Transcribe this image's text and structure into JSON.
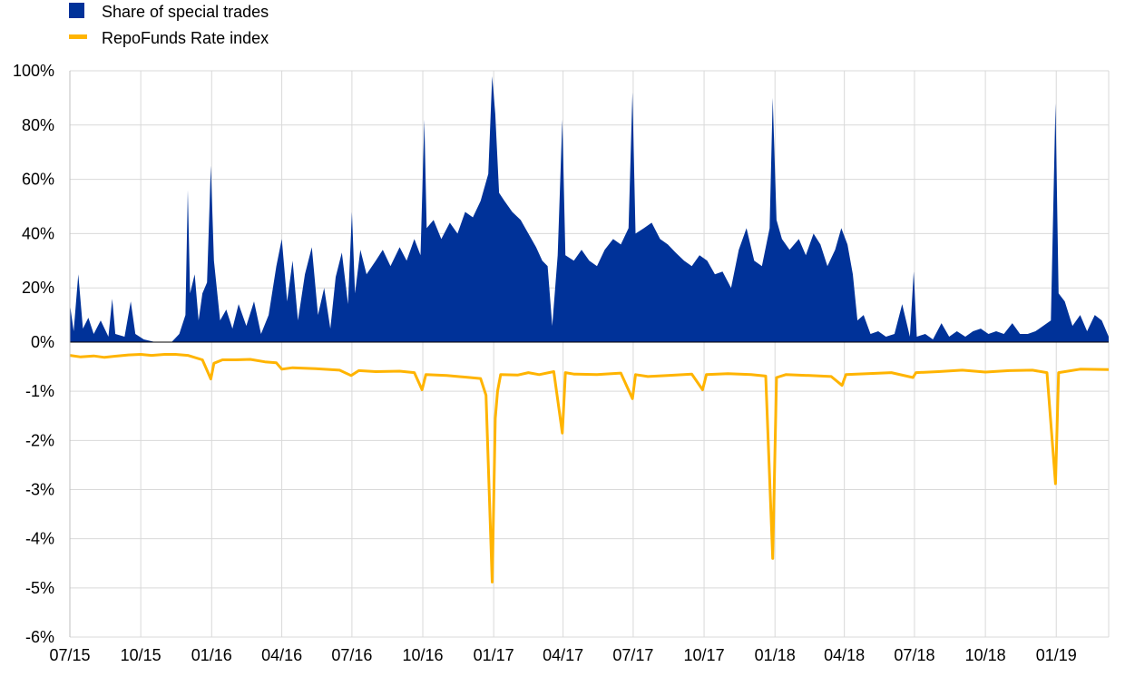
{
  "colors": {
    "special_share": "#003299",
    "repo_index": "#FFB400",
    "grid": "#d9d9d9",
    "axis": "#000000"
  },
  "legend": [
    {
      "label": "Share of special trades",
      "color": "#003299",
      "marker": "square"
    },
    {
      "label": "RepoFunds Rate index",
      "color": "#FFB400",
      "marker": "line"
    }
  ],
  "chart_data": {
    "type": "area",
    "title": "",
    "xlabel": "",
    "ylabel": "",
    "x_range": [
      "2015-07-01",
      "2019-03-10"
    ],
    "x_ticks": [
      {
        "date": "2015-07-01",
        "label": "07/15"
      },
      {
        "date": "2015-10-01",
        "label": "10/15"
      },
      {
        "date": "2016-01-01",
        "label": "01/16"
      },
      {
        "date": "2016-04-01",
        "label": "04/16"
      },
      {
        "date": "2016-07-01",
        "label": "07/16"
      },
      {
        "date": "2016-10-01",
        "label": "10/16"
      },
      {
        "date": "2017-01-01",
        "label": "01/17"
      },
      {
        "date": "2017-04-01",
        "label": "04/17"
      },
      {
        "date": "2017-07-01",
        "label": "07/17"
      },
      {
        "date": "2017-10-01",
        "label": "10/17"
      },
      {
        "date": "2018-01-01",
        "label": "01/18"
      },
      {
        "date": "2018-04-01",
        "label": "04/18"
      },
      {
        "date": "2018-07-01",
        "label": "07/18"
      },
      {
        "date": "2018-10-01",
        "label": "10/18"
      },
      {
        "date": "2019-01-01",
        "label": "01/19"
      }
    ],
    "y_positive": {
      "range": [
        0,
        100
      ],
      "ticks": [
        0,
        20,
        40,
        60,
        80,
        100
      ],
      "labels": [
        "0%",
        "20%",
        "40%",
        "60%",
        "80%",
        "100%"
      ]
    },
    "y_negative": {
      "range": [
        -6,
        0
      ],
      "ticks": [
        -1,
        -2,
        -3,
        -4,
        -5,
        -6
      ],
      "labels": [
        "-1%",
        "-2%",
        "-3%",
        "-4%",
        "-5%",
        "-6%"
      ]
    },
    "grid": true,
    "legend_position": "top-left",
    "series": [
      {
        "name": "Share of special trades",
        "type": "area",
        "unit": "%",
        "points": [
          [
            "2015-07-01",
            14
          ],
          [
            "2015-07-06",
            4
          ],
          [
            "2015-07-12",
            25
          ],
          [
            "2015-07-18",
            5
          ],
          [
            "2015-07-25",
            9
          ],
          [
            "2015-08-01",
            3
          ],
          [
            "2015-08-10",
            8
          ],
          [
            "2015-08-20",
            2
          ],
          [
            "2015-08-25",
            16
          ],
          [
            "2015-08-29",
            3
          ],
          [
            "2015-09-10",
            2
          ],
          [
            "2015-09-18",
            15
          ],
          [
            "2015-09-24",
            3
          ],
          [
            "2015-10-05",
            1
          ],
          [
            "2015-10-20",
            0
          ],
          [
            "2015-11-10",
            0
          ],
          [
            "2015-11-20",
            3
          ],
          [
            "2015-11-28",
            10
          ],
          [
            "2015-12-01",
            56
          ],
          [
            "2015-12-04",
            18
          ],
          [
            "2015-12-10",
            25
          ],
          [
            "2015-12-15",
            8
          ],
          [
            "2015-12-20",
            18
          ],
          [
            "2015-12-26",
            22
          ],
          [
            "2015-12-31",
            65
          ],
          [
            "2016-01-04",
            30
          ],
          [
            "2016-01-12",
            8
          ],
          [
            "2016-01-20",
            12
          ],
          [
            "2016-01-28",
            5
          ],
          [
            "2016-02-05",
            14
          ],
          [
            "2016-02-15",
            6
          ],
          [
            "2016-02-25",
            15
          ],
          [
            "2016-03-05",
            3
          ],
          [
            "2016-03-15",
            10
          ],
          [
            "2016-03-25",
            28
          ],
          [
            "2016-04-01",
            38
          ],
          [
            "2016-04-08",
            15
          ],
          [
            "2016-04-15",
            30
          ],
          [
            "2016-04-22",
            8
          ],
          [
            "2016-05-01",
            25
          ],
          [
            "2016-05-10",
            35
          ],
          [
            "2016-05-18",
            10
          ],
          [
            "2016-05-26",
            20
          ],
          [
            "2016-06-03",
            5
          ],
          [
            "2016-06-10",
            24
          ],
          [
            "2016-06-18",
            33
          ],
          [
            "2016-06-26",
            14
          ],
          [
            "2016-07-01",
            48
          ],
          [
            "2016-07-05",
            18
          ],
          [
            "2016-07-12",
            34
          ],
          [
            "2016-07-20",
            25
          ],
          [
            "2016-08-01",
            30
          ],
          [
            "2016-08-10",
            34
          ],
          [
            "2016-08-20",
            28
          ],
          [
            "2016-09-01",
            35
          ],
          [
            "2016-09-10",
            30
          ],
          [
            "2016-09-20",
            38
          ],
          [
            "2016-09-28",
            32
          ],
          [
            "2016-10-03",
            82
          ],
          [
            "2016-10-06",
            42
          ],
          [
            "2016-10-15",
            45
          ],
          [
            "2016-10-25",
            38
          ],
          [
            "2016-11-05",
            44
          ],
          [
            "2016-11-15",
            40
          ],
          [
            "2016-11-25",
            48
          ],
          [
            "2016-12-05",
            46
          ],
          [
            "2016-12-15",
            52
          ],
          [
            "2016-12-25",
            62
          ],
          [
            "2016-12-30",
            98
          ],
          [
            "2017-01-03",
            84
          ],
          [
            "2017-01-08",
            55
          ],
          [
            "2017-01-15",
            52
          ],
          [
            "2017-01-25",
            48
          ],
          [
            "2017-02-05",
            45
          ],
          [
            "2017-02-15",
            40
          ],
          [
            "2017-02-25",
            35
          ],
          [
            "2017-03-05",
            30
          ],
          [
            "2017-03-12",
            28
          ],
          [
            "2017-03-18",
            6
          ],
          [
            "2017-03-25",
            32
          ],
          [
            "2017-03-31",
            82
          ],
          [
            "2017-04-04",
            32
          ],
          [
            "2017-04-15",
            30
          ],
          [
            "2017-04-25",
            34
          ],
          [
            "2017-05-05",
            30
          ],
          [
            "2017-05-15",
            28
          ],
          [
            "2017-05-25",
            34
          ],
          [
            "2017-06-05",
            38
          ],
          [
            "2017-06-15",
            36
          ],
          [
            "2017-06-25",
            42
          ],
          [
            "2017-06-30",
            92
          ],
          [
            "2017-07-04",
            40
          ],
          [
            "2017-07-15",
            42
          ],
          [
            "2017-07-25",
            44
          ],
          [
            "2017-08-05",
            38
          ],
          [
            "2017-08-15",
            36
          ],
          [
            "2017-08-25",
            33
          ],
          [
            "2017-09-05",
            30
          ],
          [
            "2017-09-15",
            28
          ],
          [
            "2017-09-25",
            32
          ],
          [
            "2017-10-05",
            30
          ],
          [
            "2017-10-15",
            25
          ],
          [
            "2017-10-25",
            26
          ],
          [
            "2017-11-05",
            20
          ],
          [
            "2017-11-15",
            34
          ],
          [
            "2017-11-25",
            42
          ],
          [
            "2017-12-05",
            30
          ],
          [
            "2017-12-15",
            28
          ],
          [
            "2017-12-25",
            42
          ],
          [
            "2017-12-29",
            90
          ],
          [
            "2018-01-03",
            45
          ],
          [
            "2018-01-10",
            38
          ],
          [
            "2018-01-20",
            34
          ],
          [
            "2018-02-01",
            38
          ],
          [
            "2018-02-10",
            32
          ],
          [
            "2018-02-20",
            40
          ],
          [
            "2018-03-01",
            36
          ],
          [
            "2018-03-10",
            28
          ],
          [
            "2018-03-20",
            34
          ],
          [
            "2018-03-28",
            42
          ],
          [
            "2018-04-05",
            36
          ],
          [
            "2018-04-12",
            25
          ],
          [
            "2018-04-18",
            8
          ],
          [
            "2018-04-26",
            10
          ],
          [
            "2018-05-05",
            3
          ],
          [
            "2018-05-15",
            4
          ],
          [
            "2018-05-25",
            2
          ],
          [
            "2018-06-05",
            3
          ],
          [
            "2018-06-15",
            14
          ],
          [
            "2018-06-25",
            2
          ],
          [
            "2018-06-30",
            26
          ],
          [
            "2018-07-04",
            2
          ],
          [
            "2018-07-15",
            3
          ],
          [
            "2018-07-25",
            1
          ],
          [
            "2018-08-05",
            7
          ],
          [
            "2018-08-15",
            2
          ],
          [
            "2018-08-25",
            4
          ],
          [
            "2018-09-05",
            2
          ],
          [
            "2018-09-15",
            4
          ],
          [
            "2018-09-25",
            5
          ],
          [
            "2018-10-05",
            3
          ],
          [
            "2018-10-15",
            4
          ],
          [
            "2018-10-25",
            3
          ],
          [
            "2018-11-05",
            7
          ],
          [
            "2018-11-15",
            3
          ],
          [
            "2018-11-25",
            3
          ],
          [
            "2018-12-05",
            4
          ],
          [
            "2018-12-15",
            6
          ],
          [
            "2018-12-25",
            8
          ],
          [
            "2018-12-31",
            88
          ],
          [
            "2019-01-04",
            18
          ],
          [
            "2019-01-12",
            15
          ],
          [
            "2019-01-22",
            6
          ],
          [
            "2019-02-01",
            10
          ],
          [
            "2019-02-10",
            4
          ],
          [
            "2019-02-20",
            10
          ],
          [
            "2019-03-01",
            8
          ],
          [
            "2019-03-10",
            2
          ]
        ]
      },
      {
        "name": "RepoFunds Rate index",
        "type": "line",
        "unit": "%",
        "points": [
          [
            "2015-07-01",
            -0.27
          ],
          [
            "2015-07-15",
            -0.3
          ],
          [
            "2015-08-01",
            -0.28
          ],
          [
            "2015-08-15",
            -0.31
          ],
          [
            "2015-09-01",
            -0.28
          ],
          [
            "2015-09-15",
            -0.26
          ],
          [
            "2015-10-01",
            -0.25
          ],
          [
            "2015-10-15",
            -0.27
          ],
          [
            "2015-11-01",
            -0.25
          ],
          [
            "2015-11-15",
            -0.25
          ],
          [
            "2015-12-01",
            -0.27
          ],
          [
            "2015-12-20",
            -0.36
          ],
          [
            "2015-12-31",
            -0.75
          ],
          [
            "2016-01-04",
            -0.43
          ],
          [
            "2016-01-15",
            -0.36
          ],
          [
            "2016-02-01",
            -0.36
          ],
          [
            "2016-02-20",
            -0.35
          ],
          [
            "2016-03-10",
            -0.4
          ],
          [
            "2016-03-25",
            -0.42
          ],
          [
            "2016-04-01",
            -0.55
          ],
          [
            "2016-04-15",
            -0.52
          ],
          [
            "2016-05-15",
            -0.54
          ],
          [
            "2016-06-15",
            -0.57
          ],
          [
            "2016-06-30",
            -0.68
          ],
          [
            "2016-07-10",
            -0.58
          ],
          [
            "2016-08-01",
            -0.6
          ],
          [
            "2016-09-01",
            -0.59
          ],
          [
            "2016-09-20",
            -0.62
          ],
          [
            "2016-09-30",
            -0.97
          ],
          [
            "2016-10-05",
            -0.66
          ],
          [
            "2016-11-01",
            -0.68
          ],
          [
            "2016-12-01",
            -0.72
          ],
          [
            "2016-12-15",
            -0.74
          ],
          [
            "2016-12-22",
            -1.08
          ],
          [
            "2016-12-30",
            -4.88
          ],
          [
            "2017-01-03",
            -1.55
          ],
          [
            "2017-01-06",
            -1.0
          ],
          [
            "2017-01-10",
            -0.66
          ],
          [
            "2017-02-01",
            -0.67
          ],
          [
            "2017-02-15",
            -0.62
          ],
          [
            "2017-03-01",
            -0.66
          ],
          [
            "2017-03-20",
            -0.6
          ],
          [
            "2017-03-31",
            -1.85
          ],
          [
            "2017-04-04",
            -0.62
          ],
          [
            "2017-04-15",
            -0.65
          ],
          [
            "2017-05-15",
            -0.66
          ],
          [
            "2017-06-15",
            -0.63
          ],
          [
            "2017-06-30",
            -1.15
          ],
          [
            "2017-07-04",
            -0.66
          ],
          [
            "2017-07-20",
            -0.7
          ],
          [
            "2017-08-15",
            -0.68
          ],
          [
            "2017-09-15",
            -0.65
          ],
          [
            "2017-09-29",
            -0.97
          ],
          [
            "2017-10-04",
            -0.66
          ],
          [
            "2017-11-01",
            -0.64
          ],
          [
            "2017-12-01",
            -0.66
          ],
          [
            "2017-12-20",
            -0.69
          ],
          [
            "2017-12-29",
            -4.4
          ],
          [
            "2018-01-03",
            -0.72
          ],
          [
            "2018-01-15",
            -0.66
          ],
          [
            "2018-02-15",
            -0.68
          ],
          [
            "2018-03-15",
            -0.7
          ],
          [
            "2018-03-29",
            -0.88
          ],
          [
            "2018-04-03",
            -0.66
          ],
          [
            "2018-05-01",
            -0.64
          ],
          [
            "2018-06-01",
            -0.62
          ],
          [
            "2018-06-29",
            -0.72
          ],
          [
            "2018-07-03",
            -0.62
          ],
          [
            "2018-08-01",
            -0.6
          ],
          [
            "2018-09-01",
            -0.57
          ],
          [
            "2018-10-01",
            -0.61
          ],
          [
            "2018-11-01",
            -0.58
          ],
          [
            "2018-12-01",
            -0.57
          ],
          [
            "2018-12-20",
            -0.62
          ],
          [
            "2018-12-31",
            -2.88
          ],
          [
            "2019-01-04",
            -0.62
          ],
          [
            "2019-02-01",
            -0.55
          ],
          [
            "2019-03-10",
            -0.56
          ]
        ]
      }
    ]
  }
}
